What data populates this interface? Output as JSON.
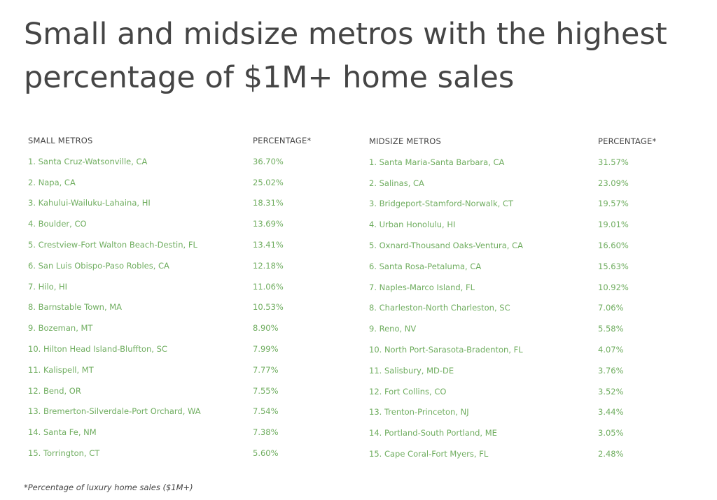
{
  "title": "Small and midsize metros with the highest percentage of $1M+ home sales",
  "small": {
    "header_metro": "SMALL METROS",
    "header_pct": "PERCENTAGE*",
    "rows": [
      {
        "metro": "1. Santa Cruz-Watsonville, CA",
        "pct": "36.70%"
      },
      {
        "metro": "2. Napa, CA",
        "pct": "25.02%"
      },
      {
        "metro": "3. Kahului-Wailuku-Lahaina, HI",
        "pct": "18.31%"
      },
      {
        "metro": "4. Boulder, CO",
        "pct": "13.69%"
      },
      {
        "metro": "5. Crestview-Fort Walton Beach-Destin, FL",
        "pct": "13.41%"
      },
      {
        "metro": "6. San Luis Obispo-Paso Robles, CA",
        "pct": "12.18%"
      },
      {
        "metro": "7. Hilo, HI",
        "pct": "11.06%"
      },
      {
        "metro": "8. Barnstable Town, MA",
        "pct": "10.53%"
      },
      {
        "metro": "9. Bozeman, MT",
        "pct": "8.90%"
      },
      {
        "metro": "10. Hilton Head Island-Bluffton, SC",
        "pct": "7.99%"
      },
      {
        "metro": "11. Kalispell, MT",
        "pct": "7.77%"
      },
      {
        "metro": "12. Bend, OR",
        "pct": "7.55%"
      },
      {
        "metro": "13. Bremerton-Silverdale-Port Orchard, WA",
        "pct": "7.54%"
      },
      {
        "metro": "14. Santa Fe, NM",
        "pct": "7.38%"
      },
      {
        "metro": "15. Torrington, CT",
        "pct": "5.60%"
      }
    ]
  },
  "midsize": {
    "header_metro": "MIDSIZE METROS",
    "header_pct": "PERCENTAGE*",
    "rows": [
      {
        "metro": "1. Santa Maria-Santa Barbara, CA",
        "pct": "31.57%"
      },
      {
        "metro": "2. Salinas, CA",
        "pct": "23.09%"
      },
      {
        "metro": "3. Bridgeport-Stamford-Norwalk, CT",
        "pct": "19.57%"
      },
      {
        "metro": "4. Urban Honolulu, HI",
        "pct": "19.01%"
      },
      {
        "metro": "5. Oxnard-Thousand Oaks-Ventura, CA",
        "pct": "16.60%"
      },
      {
        "metro": "6. Santa Rosa-Petaluma, CA",
        "pct": "15.63%"
      },
      {
        "metro": "7. Naples-Marco Island, FL",
        "pct": "10.92%"
      },
      {
        "metro": "8. Charleston-North Charleston, SC",
        "pct": "7.06%"
      },
      {
        "metro": "9. Reno, NV",
        "pct": "5.58%"
      },
      {
        "metro": "10. North Port-Sarasota-Bradenton, FL",
        "pct": "4.07%"
      },
      {
        "metro": "11. Salisbury, MD-DE",
        "pct": "3.76%"
      },
      {
        "metro": "12. Fort Collins, CO",
        "pct": "3.52%"
      },
      {
        "metro": "13. Trenton-Princeton, NJ",
        "pct": "3.44%"
      },
      {
        "metro": "14. Portland-South Portland, ME",
        "pct": "3.05%"
      },
      {
        "metro": "15. Cape Coral-Fort Myers, FL",
        "pct": "2.48%"
      }
    ]
  },
  "footnote": "*Percentage of luxury home sales ($1M+)",
  "colors": {
    "title": "#454545",
    "header": "#444444",
    "row_text": "#6fad5f"
  }
}
